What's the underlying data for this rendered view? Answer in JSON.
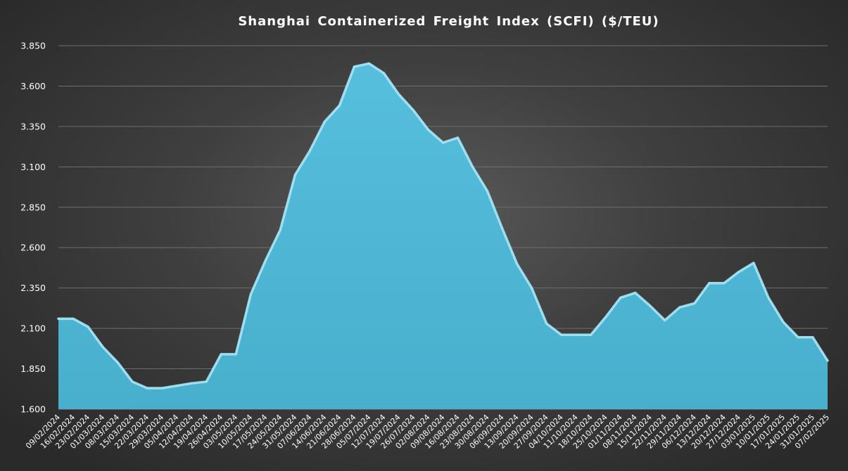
{
  "chart_data": {
    "type": "area",
    "title": "Shanghai Containerized Freight Index  (SCFI) ($/TEU)",
    "xlabel": "",
    "ylabel": "",
    "ylim": [
      1600,
      3850
    ],
    "y_ticks": [
      1600,
      1850,
      2100,
      2350,
      2600,
      2850,
      3100,
      3350,
      3600,
      3850
    ],
    "y_tick_labels": [
      "1.600",
      "1.850",
      "2.100",
      "2.350",
      "2.600",
      "2.850",
      "3.100",
      "3.350",
      "3.600",
      "3.850"
    ],
    "grid": "horizontal",
    "legend": "none",
    "colors": {
      "area_fill": "#4fb8d6",
      "area_edge": "#a8e8f8",
      "gridline": "#6e6e6e",
      "text": "#ffffff"
    },
    "x_tick_labels": [
      "09/02/2024",
      "16/02/2024",
      "23/02/2024",
      "01/03/2024",
      "08/03/2024",
      "15/03/2024",
      "22/03/2024",
      "29/03/2024",
      "05/04/2024",
      "12/04/2024",
      "19/04/2024",
      "26/04/2024",
      "03/05/2024",
      "10/05/2024",
      "17/05/2024",
      "24/05/2024",
      "31/05/2024",
      "07/06/2024",
      "14/06/2024",
      "21/06/2024",
      "28/06/2024",
      "05/07/2024",
      "12/07/2024",
      "19/07/2024",
      "26/07/2024",
      "02/08/2024",
      "09/08/2024",
      "16/08/2024",
      "23/08/2024",
      "30/08/2024",
      "06/09/2024",
      "13/09/2024",
      "20/09/2024",
      "27/09/2024",
      "04/10/2024",
      "11/10/2024",
      "18/10/2024",
      "25/10/2024",
      "01/11/2024",
      "08/11/2024",
      "15/11/2024",
      "22/11/2024",
      "29/11/2024",
      "06/12/2024",
      "13/12/2024",
      "20/12/2024",
      "27/12/2024",
      "03/01/2025",
      "10/01/2025",
      "17/01/2025",
      "24/01/2025",
      "31/01/2025",
      "07/02/2025"
    ],
    "series": [
      {
        "values": [
          2160,
          2160,
          2110,
          1985,
          1890,
          1770,
          1730,
          1730,
          1745,
          1760,
          1770,
          1940,
          1940,
          2310,
          2520,
          2710,
          3050,
          3200,
          3380,
          3480,
          3720,
          3740,
          3680,
          3550,
          3450,
          3330,
          3250,
          3280,
          3100,
          2950,
          2720,
          2500,
          2350,
          2130,
          2060,
          2060,
          2060,
          2170,
          2290,
          2320,
          2240,
          2150,
          2230,
          2255,
          2380,
          2380,
          2450,
          2505,
          2290,
          2140,
          2045,
          2045,
          1900
        ]
      }
    ]
  }
}
